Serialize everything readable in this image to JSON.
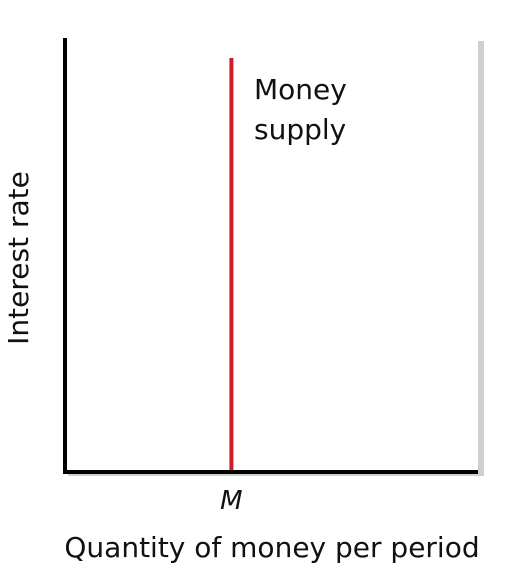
{
  "chart_data": {
    "type": "line",
    "title": "",
    "xlabel": "Quantity of money per period",
    "ylabel": "Interest rate",
    "xlim": [
      0,
      10
    ],
    "ylim": [
      0,
      10
    ],
    "grid": false,
    "legend": "none",
    "x_ticks": [
      {
        "value": 4,
        "label": "M"
      }
    ],
    "series": [
      {
        "name": "Money supply",
        "color": "#d11f26",
        "x": [
          4,
          4
        ],
        "y": [
          0,
          10
        ]
      }
    ],
    "annotations": [
      {
        "text_lines": [
          "Money",
          "supply"
        ],
        "series": 0
      }
    ]
  }
}
